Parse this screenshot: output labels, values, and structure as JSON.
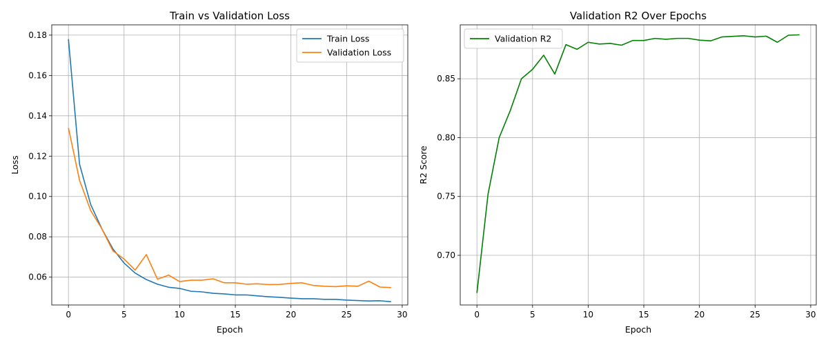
{
  "chart_data": [
    {
      "type": "line",
      "title": "Train vs Validation Loss",
      "xlabel": "Epoch",
      "ylabel": "Loss",
      "xlim": [
        -1.5,
        30.5
      ],
      "ylim": [
        0.0462,
        0.1851
      ],
      "xticks": [
        0,
        5,
        10,
        15,
        20,
        25,
        30
      ],
      "yticks": [
        0.06,
        0.08,
        0.1,
        0.12,
        0.14,
        0.16,
        0.18
      ],
      "ytick_format": 2,
      "grid": true,
      "legend": "top-right",
      "x": [
        0,
        1,
        2,
        3,
        4,
        5,
        6,
        7,
        8,
        9,
        10,
        11,
        12,
        13,
        14,
        15,
        16,
        17,
        18,
        19,
        20,
        21,
        22,
        23,
        24,
        25,
        26,
        27,
        28,
        29
      ],
      "series": [
        {
          "name": "Train Loss",
          "color": "#1f77b4",
          "values": [
            0.178,
            0.116,
            0.096,
            0.084,
            0.074,
            0.067,
            0.062,
            0.0588,
            0.0565,
            0.055,
            0.0544,
            0.053,
            0.0527,
            0.052,
            0.0517,
            0.0512,
            0.0512,
            0.0507,
            0.0503,
            0.05,
            0.0496,
            0.0493,
            0.0493,
            0.049,
            0.049,
            0.0486,
            0.0484,
            0.0482,
            0.0483,
            0.0478
          ]
        },
        {
          "name": "Validation Loss",
          "color": "#ff7f0e",
          "values": [
            0.134,
            0.108,
            0.093,
            0.084,
            0.073,
            0.069,
            0.0635,
            0.0712,
            0.059,
            0.061,
            0.0578,
            0.0585,
            0.0585,
            0.0592,
            0.0572,
            0.0572,
            0.0565,
            0.0567,
            0.0563,
            0.0564,
            0.0569,
            0.0572,
            0.0559,
            0.0555,
            0.0553,
            0.0557,
            0.0555,
            0.058,
            0.0551,
            0.0548
          ]
        }
      ]
    },
    {
      "type": "line",
      "title": "Validation R2 Over Epochs",
      "xlabel": "Epoch",
      "ylabel": "R2 Score",
      "xlim": [
        -1.5,
        30.5
      ],
      "ylim": [
        0.6578,
        0.8958
      ],
      "xticks": [
        0,
        5,
        10,
        15,
        20,
        25,
        30
      ],
      "yticks": [
        0.7,
        0.75,
        0.8,
        0.85
      ],
      "ytick_format": 2,
      "grid": true,
      "legend": "top-left",
      "x": [
        0,
        1,
        2,
        3,
        4,
        5,
        6,
        7,
        8,
        9,
        10,
        11,
        12,
        13,
        14,
        15,
        16,
        17,
        18,
        19,
        20,
        21,
        22,
        23,
        24,
        25,
        26,
        27,
        28,
        29
      ],
      "series": [
        {
          "name": "Validation R2",
          "color": "#008000",
          "values": [
            0.668,
            0.752,
            0.8,
            0.823,
            0.85,
            0.858,
            0.87,
            0.854,
            0.879,
            0.875,
            0.881,
            0.8795,
            0.88,
            0.8785,
            0.8825,
            0.8825,
            0.8843,
            0.8835,
            0.8843,
            0.8843,
            0.8828,
            0.8822,
            0.8855,
            0.886,
            0.8865,
            0.8855,
            0.8862,
            0.881,
            0.887,
            0.8873
          ]
        }
      ]
    }
  ]
}
